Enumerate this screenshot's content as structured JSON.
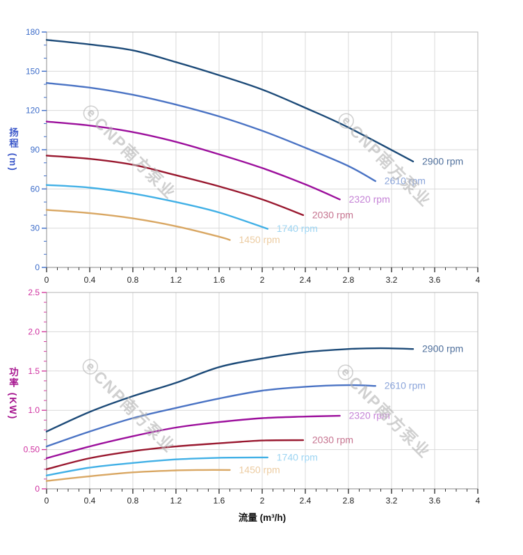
{
  "page": {
    "background": "#ffffff"
  },
  "watermark": {
    "text": "ⓔCNP南方泵业",
    "color": "#b0b0b0"
  },
  "x_axis": {
    "title": "流量 (m³/h)",
    "min": 0,
    "max": 4,
    "major_step": 0.4,
    "minor_step": 0.1,
    "tick_labels": [
      "0",
      "0.4",
      "0.8",
      "1.2",
      "1.6",
      "2",
      "2.4",
      "2.8",
      "3.2",
      "3.6",
      "4"
    ],
    "label_color": "#222222",
    "tick_color": "#333333",
    "title_color": "#111111"
  },
  "style": {
    "grid_color": "#d9d9d9",
    "border_color": "#b5b5b5",
    "axis_color": "#a0a0a0"
  },
  "chart_data": [
    {
      "type": "line",
      "id": "head",
      "title": "",
      "ylabel": "扬程 (m)",
      "xlabel": "",
      "ylim": [
        0,
        180
      ],
      "xlim": [
        0,
        4
      ],
      "y_axis": {
        "major_step": 30,
        "minor_step": 10,
        "tick_labels": [
          "0",
          "30",
          "60",
          "90",
          "120",
          "150",
          "180"
        ],
        "label_color": "#3c6cc9",
        "tick_color": "#3c6cc9",
        "title_color": "#3b57c9"
      },
      "grid": true,
      "legend_position": "end-of-curve",
      "series": [
        {
          "name": "2900 rpm",
          "color": "#1c4a78",
          "label_color": "#50709c",
          "points": [
            [
              0,
              174
            ],
            [
              0.4,
              170.5
            ],
            [
              0.8,
              166
            ],
            [
              1.2,
              157
            ],
            [
              1.6,
              147
            ],
            [
              2.0,
              136
            ],
            [
              2.4,
              122
            ],
            [
              2.8,
              107
            ],
            [
              3.4,
              81
            ]
          ]
        },
        {
          "name": "2610 rpm",
          "color": "#4a73c4",
          "label_color": "#8aa4da",
          "points": [
            [
              0,
              141
            ],
            [
              0.4,
              137.5
            ],
            [
              0.8,
              132
            ],
            [
              1.2,
              124.5
            ],
            [
              1.6,
              115.5
            ],
            [
              2.0,
              104.5
            ],
            [
              2.4,
              91.5
            ],
            [
              2.8,
              77.5
            ],
            [
              3.05,
              66
            ]
          ]
        },
        {
          "name": "2320 rpm",
          "color": "#9c0f9c",
          "label_color": "#c583d6",
          "points": [
            [
              0,
              111.5
            ],
            [
              0.4,
              108.5
            ],
            [
              0.8,
              103.5
            ],
            [
              1.2,
              96
            ],
            [
              1.6,
              86.5
            ],
            [
              2.0,
              76
            ],
            [
              2.4,
              63.5
            ],
            [
              2.72,
              52
            ]
          ]
        },
        {
          "name": "2030 rpm",
          "color": "#99182f",
          "label_color": "#c67490",
          "points": [
            [
              0,
              85.5
            ],
            [
              0.4,
              83
            ],
            [
              0.8,
              78.5
            ],
            [
              1.2,
              70.5
            ],
            [
              1.6,
              62
            ],
            [
              2.0,
              52
            ],
            [
              2.38,
              40
            ]
          ]
        },
        {
          "name": "1740 rpm",
          "color": "#41b0e6",
          "label_color": "#9cd4f2",
          "points": [
            [
              0,
              63
            ],
            [
              0.4,
              61
            ],
            [
              0.8,
              56.5
            ],
            [
              1.2,
              50
            ],
            [
              1.6,
              42
            ],
            [
              2.05,
              29.5
            ]
          ]
        },
        {
          "name": "1450 rpm",
          "color": "#d9a763",
          "label_color": "#ecccA2",
          "points": [
            [
              0,
              44
            ],
            [
              0.4,
              41.5
            ],
            [
              0.8,
              37.5
            ],
            [
              1.2,
              31.5
            ],
            [
              1.6,
              23.5
            ],
            [
              1.7,
              21
            ]
          ]
        }
      ]
    },
    {
      "type": "line",
      "id": "power",
      "title": "",
      "ylabel": "功率 (KW)",
      "xlabel": "流量 (m³/h)",
      "ylim": [
        0,
        2.5
      ],
      "xlim": [
        0,
        4
      ],
      "y_axis": {
        "major_step": 0.5,
        "minor_step": 0.125,
        "tick_labels": [
          "0",
          "0.50",
          "1.0",
          "1.5",
          "2.0",
          "2.5"
        ],
        "label_color": "#cf2f9f",
        "tick_color": "#d63a9e",
        "title_color": "#a6148f"
      },
      "grid": true,
      "legend_position": "end-of-curve",
      "series": [
        {
          "name": "2900 rpm",
          "color": "#1c4a78",
          "label_color": "#50709c",
          "points": [
            [
              0,
              0.73
            ],
            [
              0.4,
              0.98
            ],
            [
              0.8,
              1.18
            ],
            [
              1.2,
              1.35
            ],
            [
              1.6,
              1.55
            ],
            [
              2.0,
              1.66
            ],
            [
              2.4,
              1.74
            ],
            [
              2.8,
              1.78
            ],
            [
              3.1,
              1.79
            ],
            [
              3.4,
              1.78
            ]
          ]
        },
        {
          "name": "2610 rpm",
          "color": "#4a73c4",
          "label_color": "#8aa4da",
          "points": [
            [
              0,
              0.54
            ],
            [
              0.4,
              0.73
            ],
            [
              0.8,
              0.9
            ],
            [
              1.2,
              1.03
            ],
            [
              1.6,
              1.15
            ],
            [
              2.0,
              1.25
            ],
            [
              2.4,
              1.3
            ],
            [
              2.8,
              1.32
            ],
            [
              3.05,
              1.31
            ]
          ]
        },
        {
          "name": "2320 rpm",
          "color": "#9c0f9c",
          "label_color": "#c583d6",
          "points": [
            [
              0,
              0.39
            ],
            [
              0.4,
              0.54
            ],
            [
              0.8,
              0.67
            ],
            [
              1.2,
              0.78
            ],
            [
              1.6,
              0.85
            ],
            [
              2.0,
              0.9
            ],
            [
              2.4,
              0.92
            ],
            [
              2.72,
              0.93
            ]
          ]
        },
        {
          "name": "2030 rpm",
          "color": "#99182f",
          "label_color": "#c67490",
          "points": [
            [
              0,
              0.25
            ],
            [
              0.4,
              0.39
            ],
            [
              0.8,
              0.48
            ],
            [
              1.2,
              0.54
            ],
            [
              1.6,
              0.58
            ],
            [
              2.0,
              0.615
            ],
            [
              2.38,
              0.62
            ]
          ]
        },
        {
          "name": "1740 rpm",
          "color": "#41b0e6",
          "label_color": "#9cd4f2",
          "points": [
            [
              0,
              0.17
            ],
            [
              0.4,
              0.27
            ],
            [
              0.8,
              0.33
            ],
            [
              1.2,
              0.375
            ],
            [
              1.6,
              0.395
            ],
            [
              2.05,
              0.4
            ]
          ]
        },
        {
          "name": "1450 rpm",
          "color": "#d9a763",
          "label_color": "#eccca2",
          "points": [
            [
              0,
              0.1
            ],
            [
              0.4,
              0.16
            ],
            [
              0.8,
              0.21
            ],
            [
              1.2,
              0.235
            ],
            [
              1.45,
              0.24
            ],
            [
              1.7,
              0.24
            ]
          ]
        }
      ]
    }
  ]
}
